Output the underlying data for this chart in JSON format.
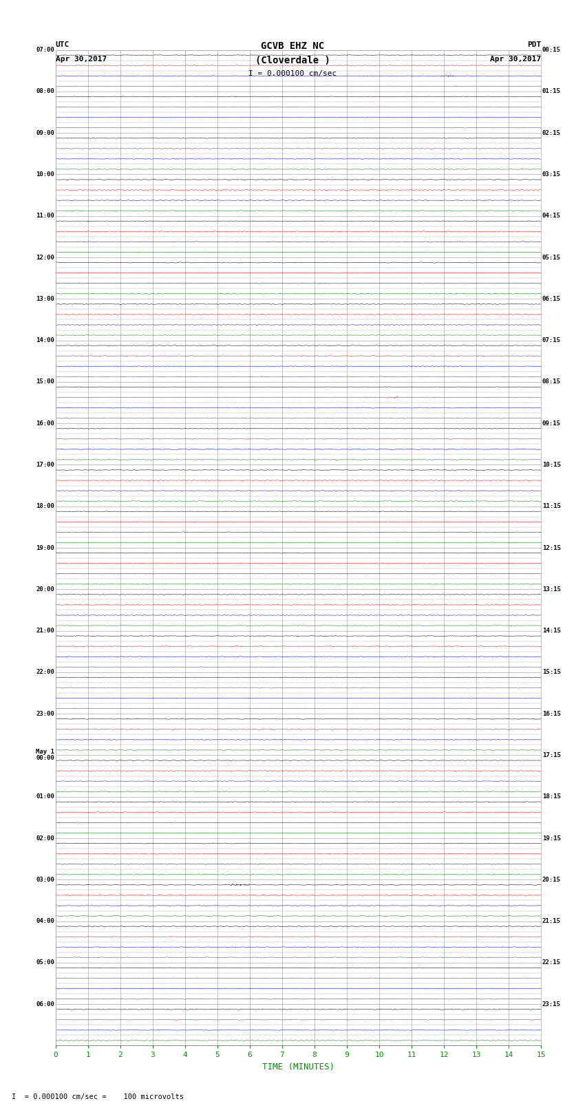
{
  "title_line1": "GCVB EHZ NC",
  "title_line2": "(Cloverdale )",
  "title_line3": "I = 0.000100 cm/sec",
  "left_label_top": "UTC",
  "left_label_date": "Apr 30,2017",
  "right_label_top": "PDT",
  "right_label_date": "Apr 30,2017",
  "xlabel": "TIME (MINUTES)",
  "footer": "= 0.000100 cm/sec =    100 microvolts",
  "left_times_utc": [
    "07:00",
    "",
    "",
    "",
    "08:00",
    "",
    "",
    "",
    "09:00",
    "",
    "",
    "",
    "10:00",
    "",
    "",
    "",
    "11:00",
    "",
    "",
    "",
    "12:00",
    "",
    "",
    "",
    "13:00",
    "",
    "",
    "",
    "14:00",
    "",
    "",
    "",
    "15:00",
    "",
    "",
    "",
    "16:00",
    "",
    "",
    "",
    "17:00",
    "",
    "",
    "",
    "18:00",
    "",
    "",
    "",
    "19:00",
    "",
    "",
    "",
    "20:00",
    "",
    "",
    "",
    "21:00",
    "",
    "",
    "",
    "22:00",
    "",
    "",
    "",
    "23:00",
    "",
    "",
    "",
    "May 1\n00:00",
    "",
    "",
    "",
    "01:00",
    "",
    "",
    "",
    "02:00",
    "",
    "",
    "",
    "03:00",
    "",
    "",
    "",
    "04:00",
    "",
    "",
    "",
    "05:00",
    "",
    "",
    "",
    "06:00",
    "",
    "",
    ""
  ],
  "right_times_pdt": [
    "00:15",
    "",
    "",
    "",
    "01:15",
    "",
    "",
    "",
    "02:15",
    "",
    "",
    "",
    "03:15",
    "",
    "",
    "",
    "04:15",
    "",
    "",
    "",
    "05:15",
    "",
    "",
    "",
    "06:15",
    "",
    "",
    "",
    "07:15",
    "",
    "",
    "",
    "08:15",
    "",
    "",
    "",
    "09:15",
    "",
    "",
    "",
    "10:15",
    "",
    "",
    "",
    "11:15",
    "",
    "",
    "",
    "12:15",
    "",
    "",
    "",
    "13:15",
    "",
    "",
    "",
    "14:15",
    "",
    "",
    "",
    "15:15",
    "",
    "",
    "",
    "16:15",
    "",
    "",
    "",
    "17:15",
    "",
    "",
    "",
    "18:15",
    "",
    "",
    "",
    "19:15",
    "",
    "",
    "",
    "20:15",
    "",
    "",
    "",
    "21:15",
    "",
    "",
    "",
    "22:15",
    "",
    "",
    "",
    "23:15",
    "",
    "",
    ""
  ],
  "n_rows": 96,
  "colors_cycle": [
    "black",
    "red",
    "blue",
    "green"
  ],
  "noise_amplitude": 0.025,
  "background_color": "white",
  "grid_color": "#aaaaaa",
  "x_ticks": [
    0,
    1,
    2,
    3,
    4,
    5,
    6,
    7,
    8,
    9,
    10,
    11,
    12,
    13,
    14,
    15
  ],
  "x_lim": [
    0,
    15
  ],
  "xaxis_color": "#009900",
  "plot_area_bg": "white"
}
